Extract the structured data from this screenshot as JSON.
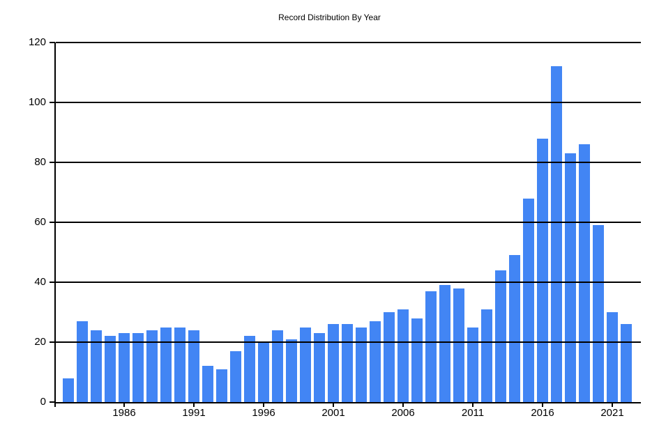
{
  "page": {
    "background": "#ffffff"
  },
  "chart_data": {
    "type": "bar",
    "title": "Record Distribution By Year",
    "x": [
      1982,
      1983,
      1984,
      1985,
      1986,
      1987,
      1988,
      1989,
      1990,
      1991,
      1992,
      1993,
      1994,
      1995,
      1996,
      1997,
      1998,
      1999,
      2000,
      2001,
      2002,
      2003,
      2004,
      2005,
      2006,
      2007,
      2008,
      2009,
      2010,
      2011,
      2012,
      2013,
      2014,
      2015,
      2016,
      2017,
      2018,
      2019,
      2020,
      2021,
      2022
    ],
    "values": [
      8,
      27,
      24,
      22,
      23,
      23,
      24,
      25,
      25,
      24,
      12,
      11,
      17,
      22,
      20,
      24,
      21,
      25,
      23,
      26,
      26,
      25,
      27,
      30,
      31,
      28,
      37,
      39,
      38,
      25,
      31,
      44,
      49,
      68,
      88,
      112,
      83,
      86,
      59,
      30,
      26
    ],
    "xlabel": "",
    "ylabel": "",
    "ylim": [
      0,
      120
    ],
    "ytick_interval": 20,
    "xticks": [
      1986,
      1991,
      1996,
      2001,
      2006,
      2011,
      2016,
      2021
    ],
    "grid": true,
    "legend": "none",
    "bar_color": "#4285F4",
    "axis_color": "#000000",
    "text_color": "#000000"
  }
}
